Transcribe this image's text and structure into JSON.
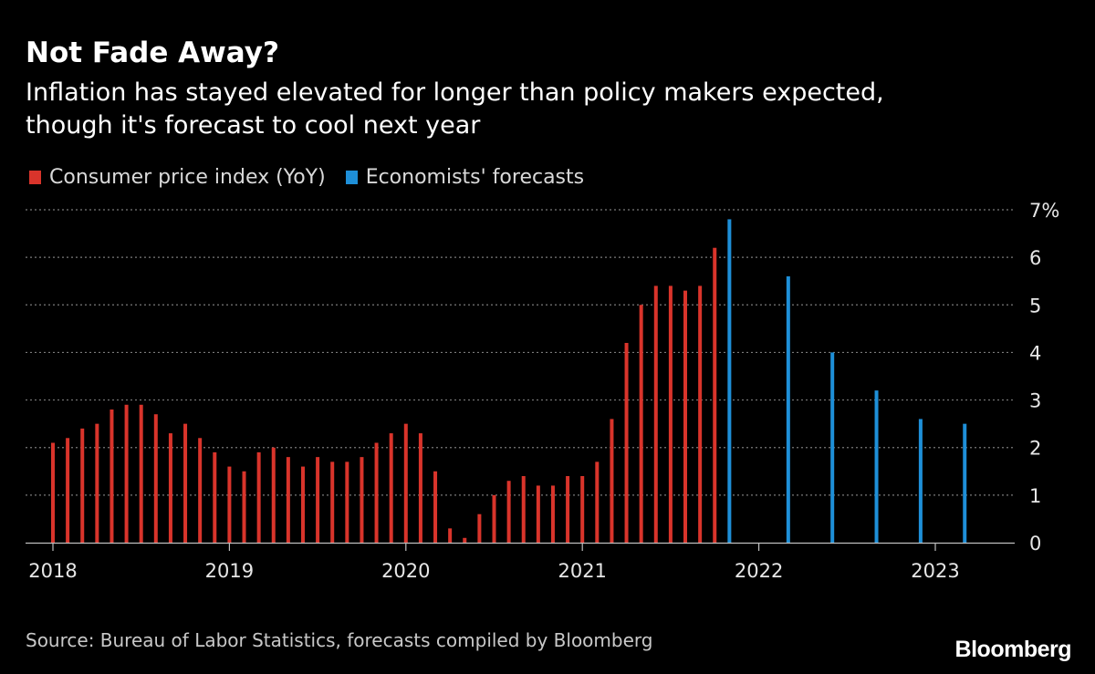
{
  "header": {
    "title": "Not Fade Away?",
    "subtitle_line1": "Inflation has stayed elevated for longer than policy makers expected,",
    "subtitle_line2": "though it's forecast to cool next year"
  },
  "legend": {
    "cpi_label": "Consumer price index (YoY)",
    "forecast_label": "Economists' forecasts"
  },
  "footer": {
    "source": "Source: Bureau of Labor Statistics, forecasts compiled by Bloomberg",
    "brand": "Bloomberg"
  },
  "colors": {
    "background": "#000000",
    "cpi": "#d9342b",
    "forecast": "#1e8fd8",
    "grid": "#7a7a7a",
    "axis_text": "#e6e6e6"
  },
  "chart_data": {
    "type": "bar",
    "title": "Not Fade Away?",
    "subtitle": "Inflation has stayed elevated for longer than policy makers expected, though it's forecast to cool next year",
    "xlabel": "",
    "ylabel": "",
    "ylim": [
      0,
      7
    ],
    "y_ticks": [
      "0",
      "1",
      "2",
      "3",
      "4",
      "5",
      "6",
      "7%"
    ],
    "y_tick_values": [
      0,
      1,
      2,
      3,
      4,
      5,
      6,
      7
    ],
    "y_axis_side": "right",
    "grid": true,
    "x_range": [
      2018.0,
      2023.5
    ],
    "x_ticks": [
      "2018",
      "2019",
      "2020",
      "2021",
      "2022",
      "2023"
    ],
    "x_tick_values": [
      2018,
      2019,
      2020,
      2021,
      2022,
      2023
    ],
    "legend_position": "top-left",
    "series": [
      {
        "name": "Consumer price index (YoY)",
        "color": "#d9342b",
        "x": [
          2018.0,
          2018.0833,
          2018.1667,
          2018.25,
          2018.3333,
          2018.4167,
          2018.5,
          2018.5833,
          2018.6667,
          2018.75,
          2018.8333,
          2018.9167,
          2019.0,
          2019.0833,
          2019.1667,
          2019.25,
          2019.3333,
          2019.4167,
          2019.5,
          2019.5833,
          2019.6667,
          2019.75,
          2019.8333,
          2019.9167,
          2020.0,
          2020.0833,
          2020.1667,
          2020.25,
          2020.3333,
          2020.4167,
          2020.5,
          2020.5833,
          2020.6667,
          2020.75,
          2020.8333,
          2020.9167,
          2021.0,
          2021.0833,
          2021.1667,
          2021.25,
          2021.3333,
          2021.4167,
          2021.5,
          2021.5833,
          2021.6667,
          2021.75
        ],
        "values": [
          2.1,
          2.2,
          2.4,
          2.5,
          2.8,
          2.9,
          2.9,
          2.7,
          2.3,
          2.5,
          2.2,
          1.9,
          1.6,
          1.5,
          1.9,
          2.0,
          1.8,
          1.6,
          1.8,
          1.7,
          1.7,
          1.8,
          2.1,
          2.3,
          2.5,
          2.3,
          1.5,
          0.3,
          0.1,
          0.6,
          1.0,
          1.3,
          1.4,
          1.2,
          1.2,
          1.4,
          1.4,
          1.7,
          2.6,
          4.2,
          5.0,
          5.4,
          5.4,
          5.3,
          5.4,
          6.2
        ]
      },
      {
        "name": "Economists' forecasts",
        "color": "#1e8fd8",
        "x": [
          2021.8333,
          2022.1667,
          2022.4167,
          2022.6667,
          2022.9167,
          2023.1667
        ],
        "values": [
          6.8,
          5.6,
          4.0,
          3.2,
          2.6,
          2.5
        ]
      }
    ]
  }
}
